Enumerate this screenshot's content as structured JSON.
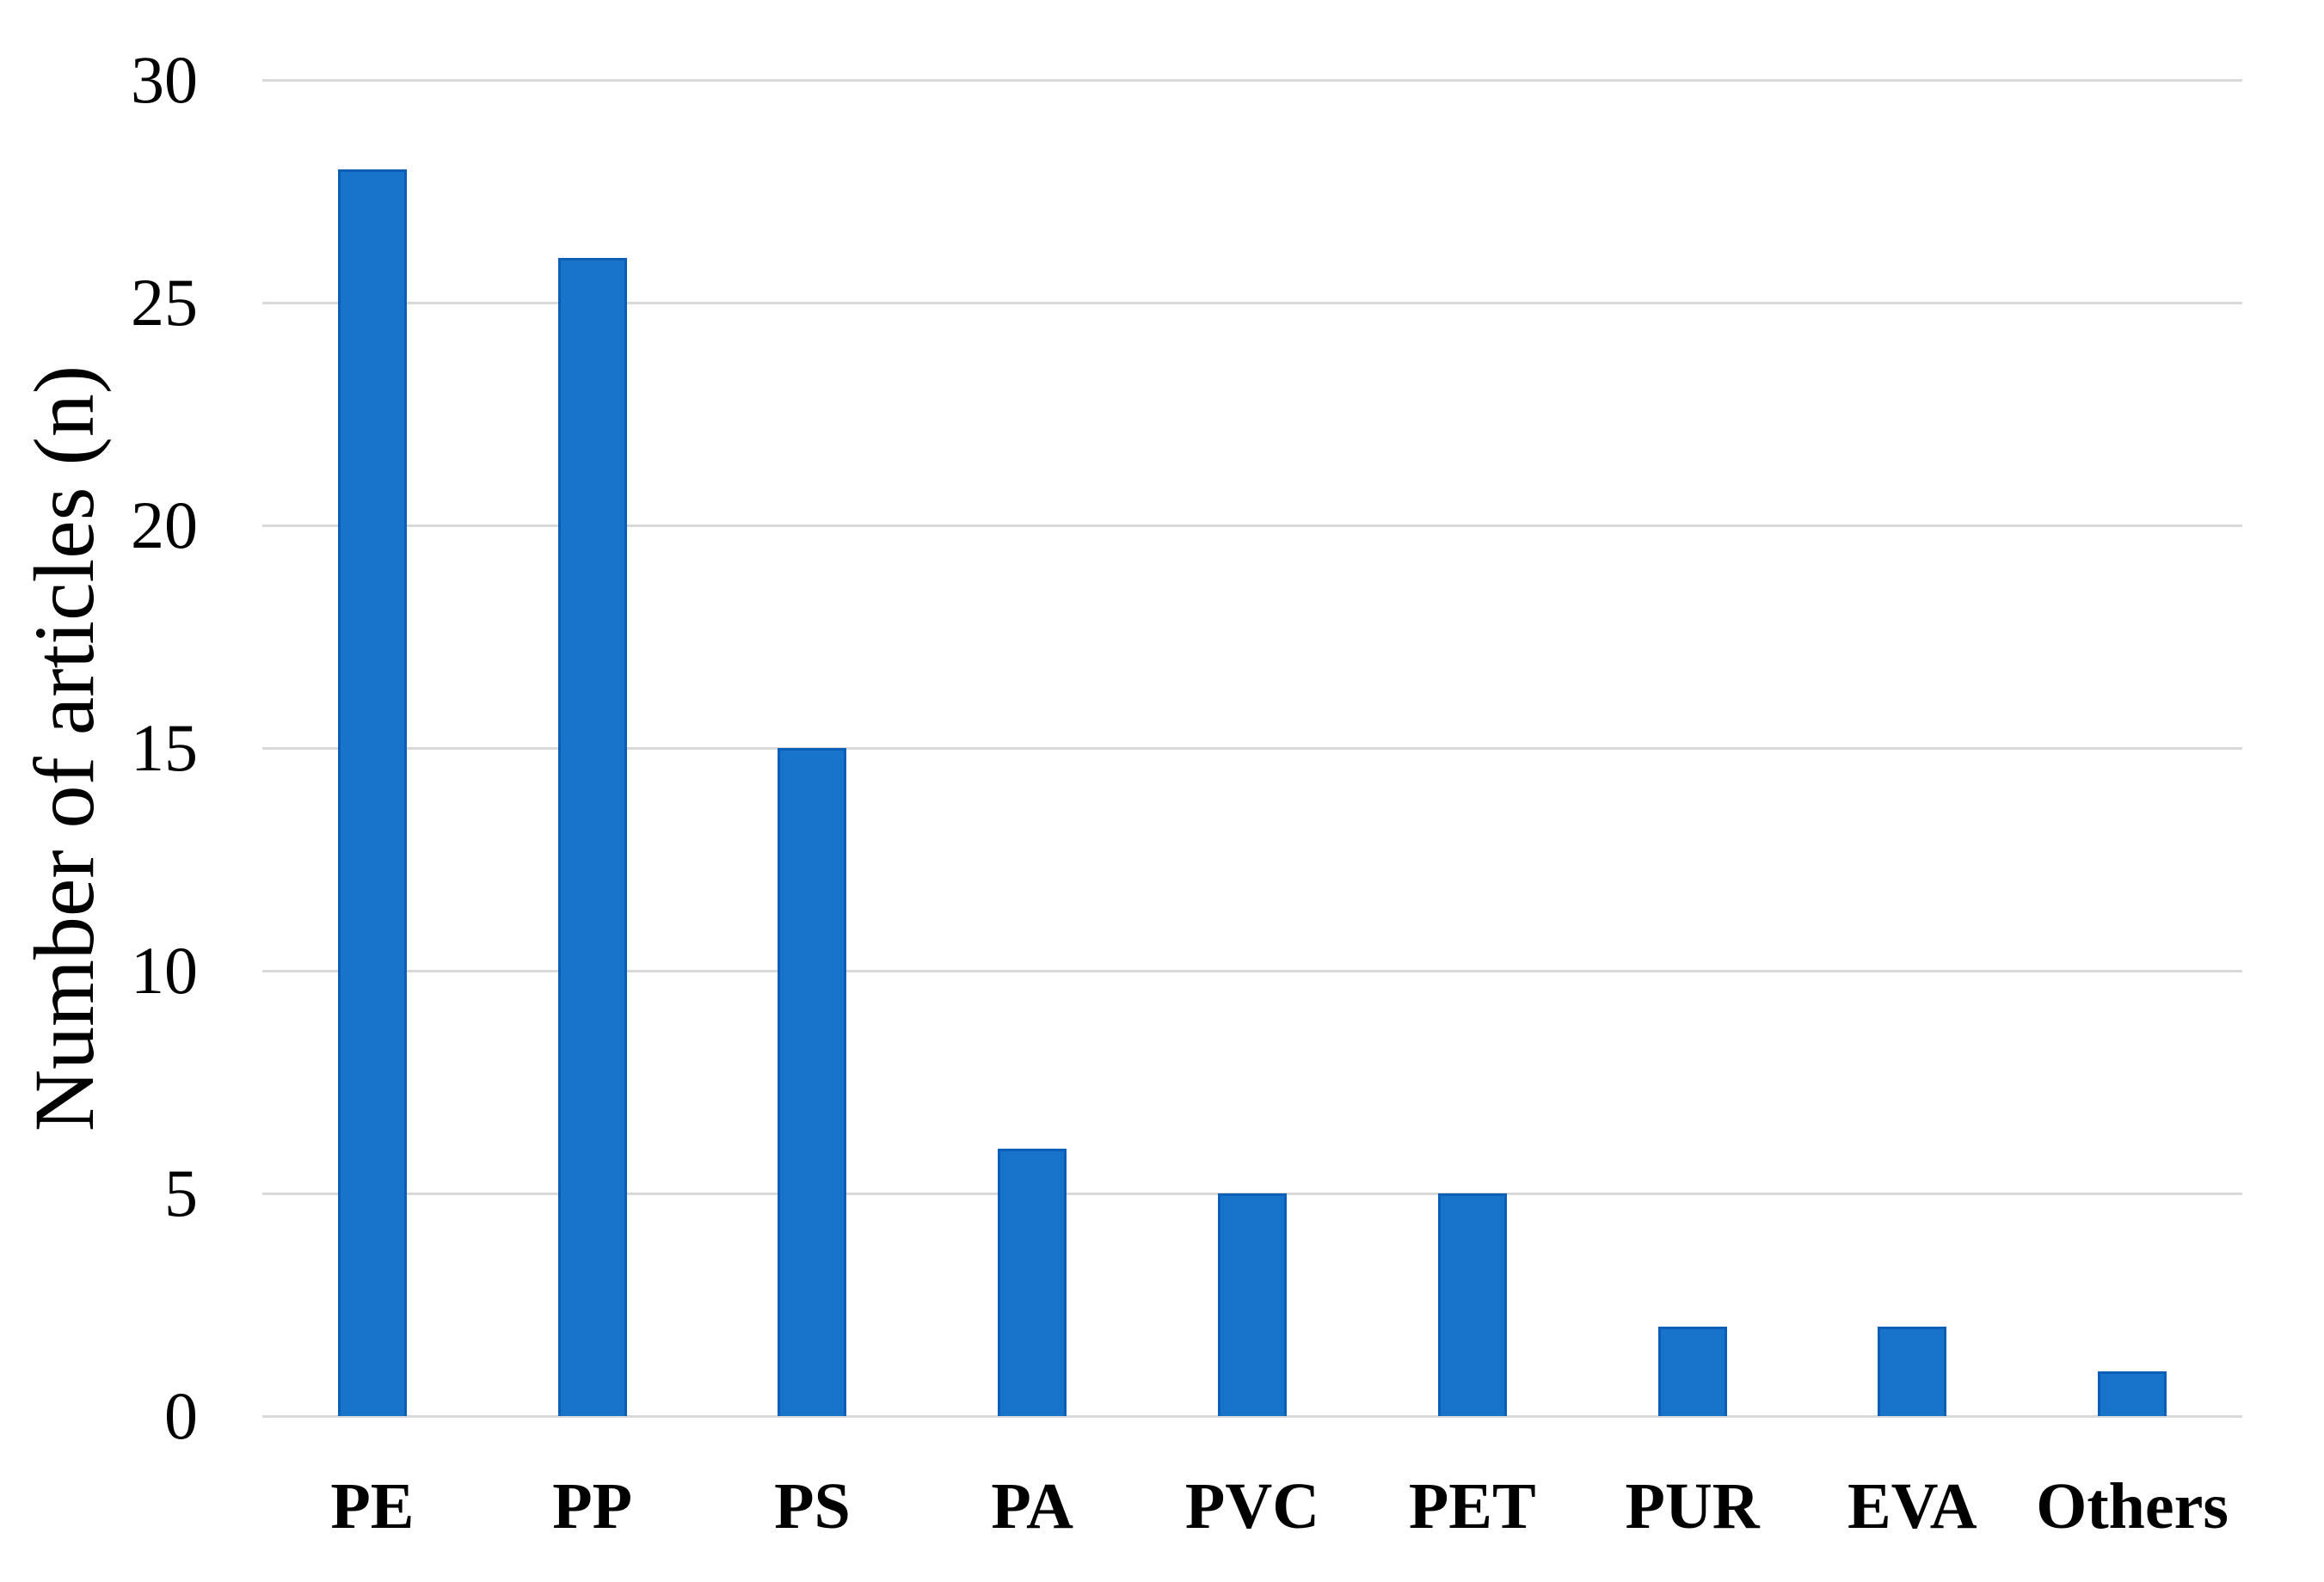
{
  "chart_data": {
    "type": "bar",
    "categories": [
      "PE",
      "PP",
      "PS",
      "PA",
      "PVC",
      "PET",
      "PUR",
      "EVA",
      "Others"
    ],
    "values": [
      28,
      26,
      15,
      6,
      5,
      5,
      2,
      2,
      1
    ],
    "title": "",
    "xlabel": "",
    "ylabel": "Number of articles (n)",
    "ylim": [
      0,
      30
    ],
    "yticks": [
      0,
      5,
      10,
      15,
      20,
      25,
      30
    ],
    "grid": "horizontal",
    "legend": "none",
    "bar_color": "#1874c9",
    "bar_border_color": "#0c5fb6",
    "gridline_color": "#d9d9d9",
    "text_color": "#000000",
    "background_color": "#ffffff"
  }
}
